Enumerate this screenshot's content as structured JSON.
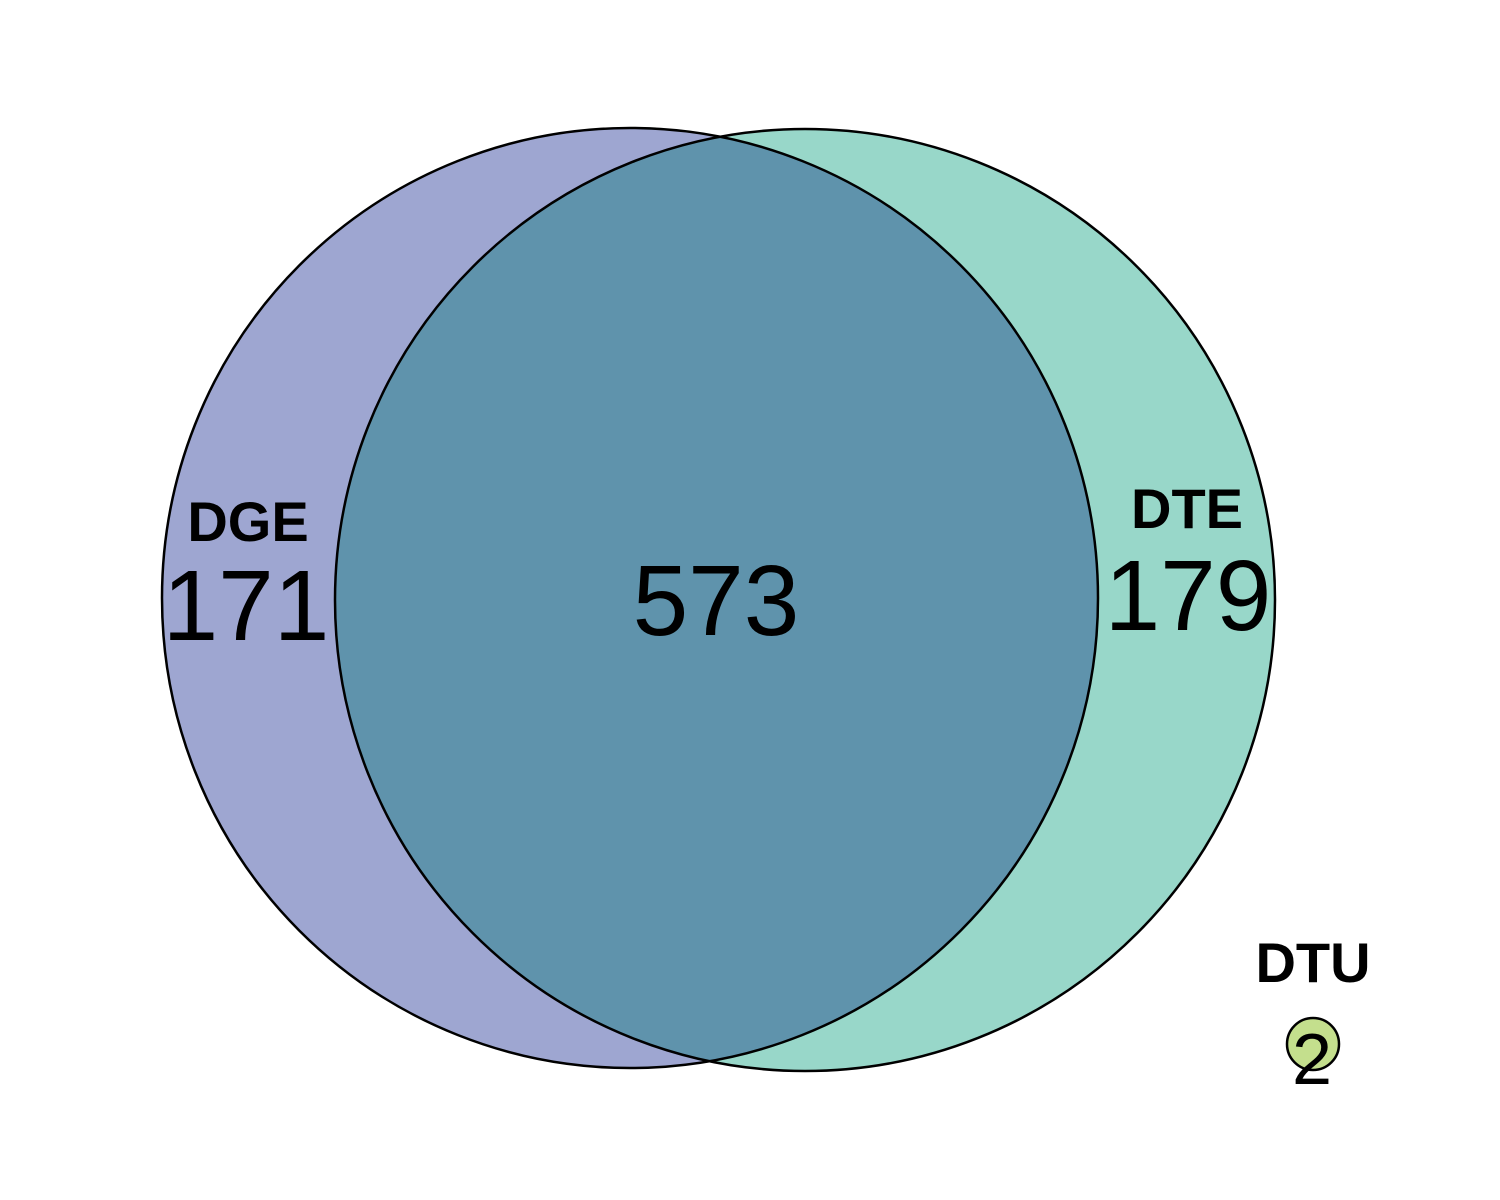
{
  "sets": {
    "dge": {
      "name": "DGE",
      "only": "171",
      "color": "#9ea6d1"
    },
    "dte": {
      "name": "DTE",
      "only": "179",
      "color": "#98d7c9"
    },
    "dtu": {
      "name": "DTU",
      "only": "2",
      "color": "#c4df8d"
    }
  },
  "overlap": {
    "dge_dte": "573",
    "color": "#5f93ac"
  },
  "outline_color": "#000000"
}
